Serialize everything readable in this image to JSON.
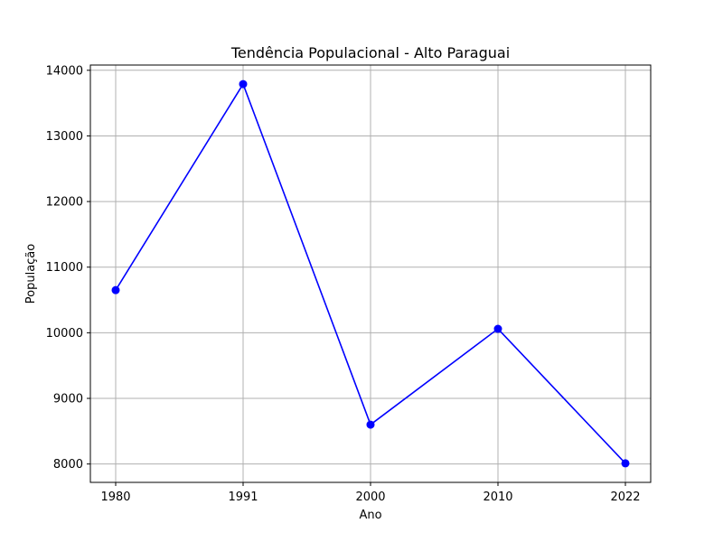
{
  "chart_data": {
    "type": "line",
    "title": "Tendência Populacional - Alto Paraguai",
    "xlabel": "Ano",
    "ylabel": "População",
    "categories": [
      "1980",
      "1991",
      "2000",
      "2010",
      "2022"
    ],
    "series": [
      {
        "values": [
          10650,
          13790,
          8600,
          10060,
          8010
        ],
        "color": "#0000ff"
      }
    ],
    "yticks": [
      8000,
      9000,
      10000,
      11000,
      12000,
      13000,
      14000
    ],
    "ytick_labels": [
      "8000",
      "9000",
      "10000",
      "11000",
      "12000",
      "13000",
      "14000"
    ],
    "ylim": [
      7720,
      14080
    ],
    "grid": true,
    "marker": "circle"
  }
}
